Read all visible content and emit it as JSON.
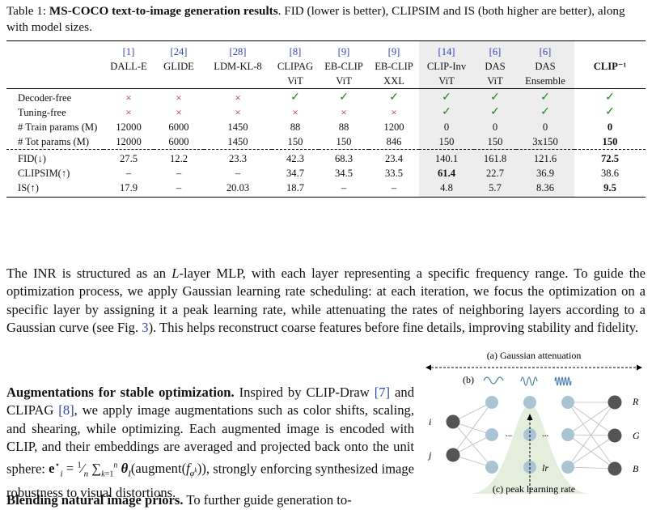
{
  "caption": {
    "prefix": "Table 1: ",
    "bold": "MS-COCO text-to-image generation results",
    "rest": ". FID (lower is better), CLIPSIM and IS (both higher are better), along with model sizes."
  },
  "table": {
    "columns": [
      {
        "ref": "[1]",
        "name": "DALL-E",
        "sub": ""
      },
      {
        "ref": "[24]",
        "name": "GLIDE",
        "sub": ""
      },
      {
        "ref": "[28]",
        "name": "LDM-KL-8",
        "sub": ""
      },
      {
        "ref": "[8]",
        "name": "CLIPAG",
        "sub": "ViT"
      },
      {
        "ref": "[9]",
        "name": "EB-CLIP",
        "sub": "ViT"
      },
      {
        "ref": "[9]",
        "name": "EB-CLIP",
        "sub": "XXL"
      },
      {
        "ref": "[14]",
        "name": "CLIP-Inv",
        "sub": "ViT"
      },
      {
        "ref": "[6]",
        "name": "DAS",
        "sub": "ViT"
      },
      {
        "ref": "[6]",
        "name": "DAS",
        "sub": "Ensemble"
      },
      {
        "ref": "",
        "name": "CLIP⁻¹",
        "sub": ""
      }
    ],
    "rows_flags": [
      {
        "label": "Decoder-free",
        "values": [
          "×",
          "×",
          "×",
          "✓",
          "✓",
          "✓",
          "✓",
          "✓",
          "✓",
          "✓"
        ]
      },
      {
        "label": "Tuning-free",
        "values": [
          "×",
          "×",
          "×",
          "×",
          "×",
          "×",
          "✓",
          "✓",
          "✓",
          "✓"
        ]
      }
    ],
    "rows_params": [
      {
        "label": "# Train params (M)",
        "values": [
          "12000",
          "6000",
          "1450",
          "88",
          "88",
          "1200",
          "0",
          "0",
          "0",
          "0"
        ]
      },
      {
        "label": "# Tot params (M)",
        "values": [
          "12000",
          "6000",
          "1450",
          "150",
          "150",
          "846",
          "150",
          "150",
          "3x150",
          "150"
        ]
      }
    ],
    "rows_metrics": [
      {
        "label": "FID(↓)",
        "values": [
          "27.5",
          "12.2",
          "23.3",
          "42.3",
          "68.3",
          "23.4",
          "140.1",
          "161.8",
          "121.6",
          "72.5"
        ]
      },
      {
        "label": "CLIPSIM(↑)",
        "values": [
          "–",
          "–",
          "–",
          "34.7",
          "34.5",
          "33.5",
          "61.4",
          "22.7",
          "36.9",
          "38.6"
        ]
      },
      {
        "label": "IS(↑)",
        "values": [
          "17.9",
          "–",
          "20.03",
          "18.7",
          "–",
          "–",
          "4.8",
          "5.7",
          "8.36",
          "9.5"
        ]
      }
    ]
  },
  "para1": {
    "t1": "The INR is structured as an ",
    "L": "L",
    "t2": "-layer MLP, with each layer representing a specific frequency range. To guide the optimization process, we apply Gaussian learning rate scheduling: at each iteration, we focus the optimization on a specific layer by assigning it a peak learning rate, while attenuating the rates of neighboring layers according to a Gaussian curve (see Fig. ",
    "figref": "3",
    "t3": "). This helps reconstruct coarse features before fine details, improving stability and fidelity."
  },
  "para2": {
    "heading": "Augmentations for stable optimization.",
    "t1": " Inspired by CLIP-Draw ",
    "c1": "[7]",
    "t2": " and CLIPAG ",
    "c2": "[8]",
    "t3": ", we apply image augmentations such as color shifts, scaling, and shearing, while optimizing. Each augmented image is encoded with CLIP, and their embeddings are averaged and projected back onto the unit sphere: ",
    "formula": "e",
    "t4": ", strongly enforcing synthesized image robustness to visual distortions."
  },
  "para3": {
    "heading": "Blending natural image priors.",
    "t1": " To further guide generation to-"
  },
  "figure": {
    "label_a": "(a) Gaussian attenuation",
    "label_b": "(b)",
    "label_c": "(c) peak learning rate",
    "in_i": "i",
    "in_j": "j",
    "out_r": "R",
    "out_g": "G",
    "out_b": "B",
    "lr": "lr",
    "dots": "..."
  },
  "colors": {
    "ref": "#2b43c8",
    "cross": "#d42020",
    "check": "#1a8a1a",
    "shade": "#ededed",
    "node_dark": "#555555",
    "node_light": "#a9c4d2",
    "gauss": "#e3eedc"
  }
}
